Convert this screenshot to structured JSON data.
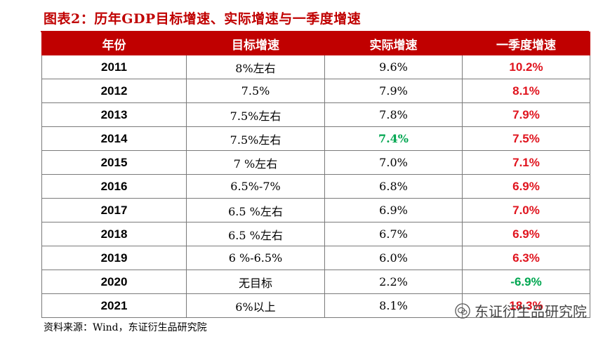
{
  "title": "图表2：历年GDP目标增速、实际增速与一季度增速",
  "colors": {
    "red": "#c00000",
    "green": "#00a650",
    "header_bg": "#c00000"
  },
  "table": {
    "headers": [
      "年份",
      "目标增速",
      "实际增速",
      "一季度增速"
    ],
    "rows": [
      {
        "year": "2011",
        "target": "8%左右",
        "actual": "9.6%",
        "q1": "10.2%",
        "actual_color": "#000000",
        "q1_color": "#e0141e"
      },
      {
        "year": "2012",
        "target": "7.5%",
        "actual": "7.9%",
        "q1": "8.1%",
        "actual_color": "#000000",
        "q1_color": "#e0141e"
      },
      {
        "year": "2013",
        "target": "7.5%左右",
        "actual": "7.8%",
        "q1": "7.9%",
        "actual_color": "#000000",
        "q1_color": "#e0141e"
      },
      {
        "year": "2014",
        "target": "7.5%左右",
        "actual": "7.4%",
        "q1": "7.5%",
        "actual_color": "#00a650",
        "q1_color": "#e0141e"
      },
      {
        "year": "2015",
        "target": "7 %左右",
        "actual": "7.0%",
        "q1": "7.1%",
        "actual_color": "#000000",
        "q1_color": "#e0141e"
      },
      {
        "year": "2016",
        "target": "6.5%-7%",
        "actual": "6.8%",
        "q1": "6.9%",
        "actual_color": "#000000",
        "q1_color": "#e0141e"
      },
      {
        "year": "2017",
        "target": "6.5 %左右",
        "actual": "6.9%",
        "q1": "7.0%",
        "actual_color": "#000000",
        "q1_color": "#e0141e"
      },
      {
        "year": "2018",
        "target": "6.5 %左右",
        "actual": "6.7%",
        "q1": "6.9%",
        "actual_color": "#000000",
        "q1_color": "#e0141e"
      },
      {
        "year": "2019",
        "target": "6 %-6.5%",
        "actual": "6.0%",
        "q1": "6.3%",
        "actual_color": "#000000",
        "q1_color": "#e0141e"
      },
      {
        "year": "2020",
        "target": "无目标",
        "actual": "2.2%",
        "q1": "-6.9%",
        "actual_color": "#000000",
        "q1_color": "#00a650"
      },
      {
        "year": "2021",
        "target": "6%以上",
        "actual": "8.1%",
        "q1": "18.3%",
        "actual_color": "#000000",
        "q1_color": "#e0141e"
      }
    ]
  },
  "source": "资料来源：Wind，东证衍生品研究院",
  "watermark": {
    "text": "东证衍生品研究院",
    "icon": "wechat-icon"
  }
}
